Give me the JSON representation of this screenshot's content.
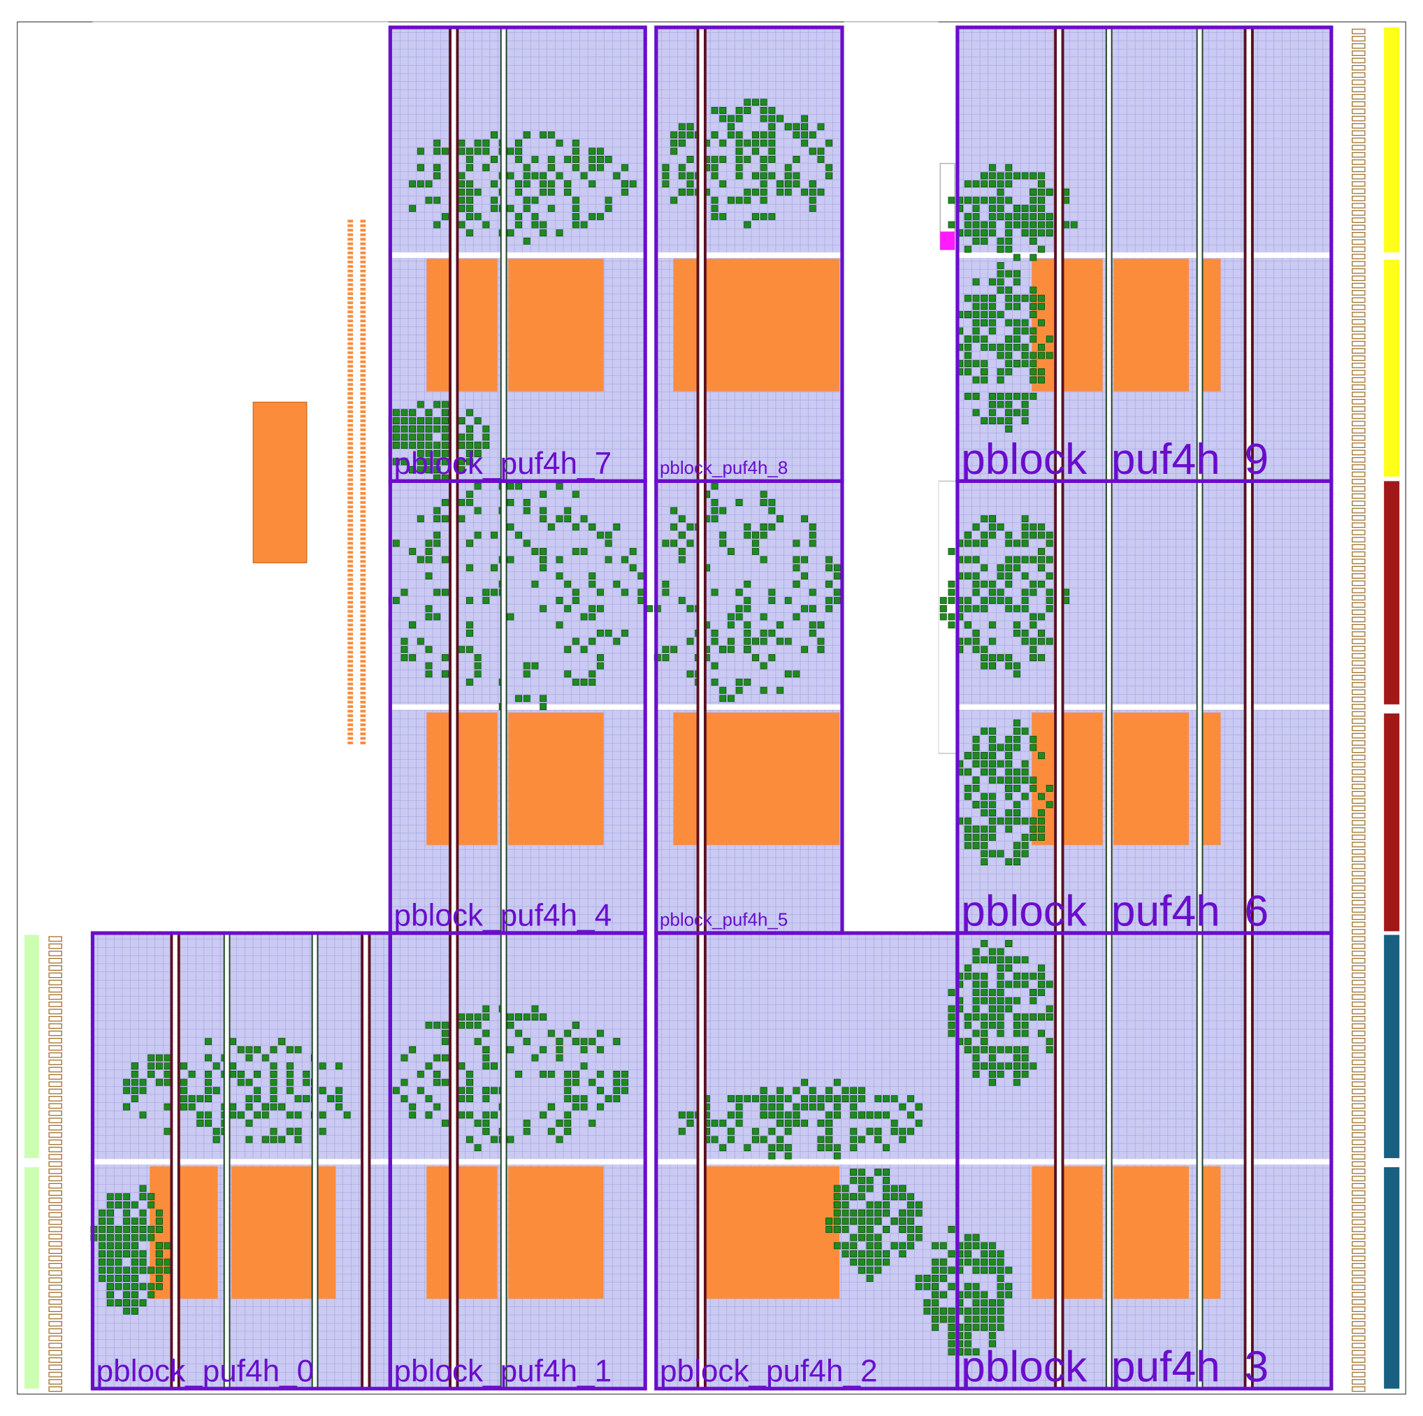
{
  "pblocks": [
    {
      "label": "pblock_puf4h_0"
    },
    {
      "label": "pblock_puf4h_1"
    },
    {
      "label": "pblock_puf4h_2"
    },
    {
      "label": "pblock_puf4h_3"
    },
    {
      "label": "pblock_puf4h_4"
    },
    {
      "label": "pblock_puf4h_5"
    },
    {
      "label": "pblock_puf4h_6"
    },
    {
      "label": "pblock_puf4h_7"
    },
    {
      "label": "pblock_puf4h_8"
    },
    {
      "label": "pblock_puf4h_9"
    }
  ]
}
